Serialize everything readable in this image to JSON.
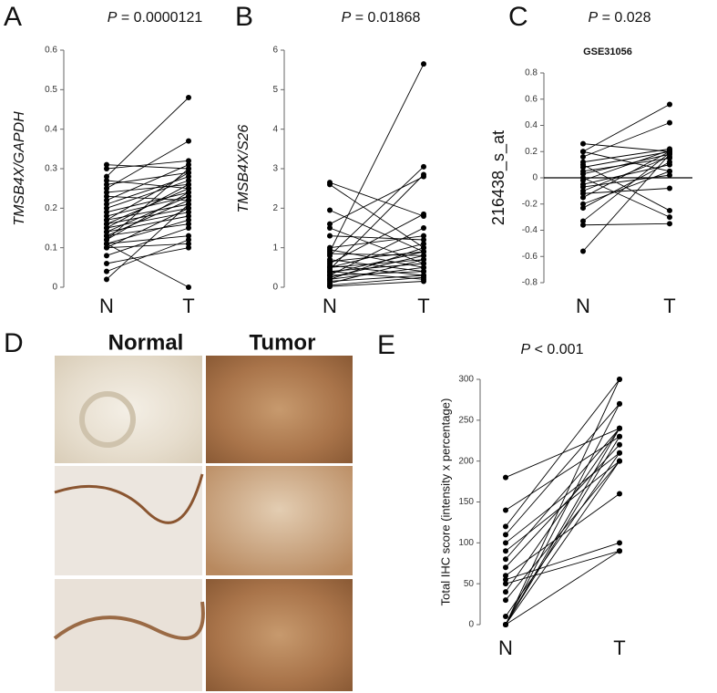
{
  "chart_data": [
    {
      "type": "paired",
      "panel": "A",
      "pvalue_symbol": "P",
      "pvalue_text": "= 0.0000121",
      "ylabel": "TMSB4X/GAPDH",
      "ylabel_italic": true,
      "color": "#000000",
      "categories": [
        "N",
        "T"
      ],
      "ylim": [
        0,
        0.6
      ],
      "yticks": [
        0,
        0.1,
        0.2,
        0.3,
        0.4,
        0.5,
        0.6
      ],
      "zero_line": false,
      "series": [
        {
          "values": [
            0.31,
            0.3
          ]
        },
        {
          "values": [
            0.3,
            0.32
          ]
        },
        {
          "values": [
            0.28,
            0.48
          ]
        },
        {
          "values": [
            0.27,
            0.25
          ]
        },
        {
          "values": [
            0.26,
            0.29
          ]
        },
        {
          "values": [
            0.25,
            0.37
          ]
        },
        {
          "values": [
            0.24,
            0.26
          ]
        },
        {
          "values": [
            0.23,
            0.22
          ]
        },
        {
          "values": [
            0.22,
            0.31
          ]
        },
        {
          "values": [
            0.21,
            0.28
          ]
        },
        {
          "values": [
            0.2,
            0.27
          ]
        },
        {
          "values": [
            0.19,
            0.24
          ]
        },
        {
          "values": [
            0.18,
            0.23
          ]
        },
        {
          "values": [
            0.17,
            0.29
          ]
        },
        {
          "values": [
            0.17,
            0.21
          ]
        },
        {
          "values": [
            0.16,
            0.25
          ]
        },
        {
          "values": [
            0.16,
            0.2
          ]
        },
        {
          "values": [
            0.15,
            0.19
          ]
        },
        {
          "values": [
            0.15,
            0.26
          ]
        },
        {
          "values": [
            0.14,
            0.23
          ]
        },
        {
          "values": [
            0.14,
            0.18
          ]
        },
        {
          "values": [
            0.13,
            0.22
          ]
        },
        {
          "values": [
            0.13,
            0.16
          ]
        },
        {
          "values": [
            0.12,
            0.24
          ]
        },
        {
          "values": [
            0.12,
            0.3
          ]
        },
        {
          "values": [
            0.11,
            0.13
          ]
        },
        {
          "values": [
            0.11,
            0.17
          ]
        },
        {
          "values": [
            0.11,
            0
          ]
        },
        {
          "values": [
            0.1,
            0.11
          ]
        },
        {
          "values": [
            0.1,
            0.2
          ]
        },
        {
          "values": [
            0.08,
            0.15
          ]
        },
        {
          "values": [
            0.06,
            0.1
          ]
        },
        {
          "values": [
            0.04,
            0.12
          ]
        },
        {
          "values": [
            0.02,
            0.21
          ]
        }
      ]
    },
    {
      "type": "paired",
      "panel": "B",
      "pvalue_symbol": "P",
      "pvalue_text": "= 0.01868",
      "ylabel": "TMSB4X/S26",
      "ylabel_italic": true,
      "color": "#000000",
      "categories": [
        "N",
        "T"
      ],
      "ylim": [
        0,
        6
      ],
      "yticks": [
        0,
        1,
        2,
        3,
        4,
        5,
        6
      ],
      "zero_line": false,
      "series": [
        {
          "values": [
            2.65,
            1.8
          ]
        },
        {
          "values": [
            2.6,
            1.0
          ]
        },
        {
          "values": [
            1.95,
            0.9
          ]
        },
        {
          "values": [
            1.6,
            2.8
          ]
        },
        {
          "values": [
            1.5,
            0.6
          ]
        },
        {
          "values": [
            1.3,
            1.2
          ]
        },
        {
          "values": [
            1.0,
            1.3
          ]
        },
        {
          "values": [
            0.95,
            0.5
          ]
        },
        {
          "values": [
            0.9,
            5.65
          ]
        },
        {
          "values": [
            0.85,
            0.8
          ]
        },
        {
          "values": [
            0.8,
            3.05
          ]
        },
        {
          "values": [
            0.7,
            0.4
          ]
        },
        {
          "values": [
            0.65,
            0.9
          ]
        },
        {
          "values": [
            0.6,
            1.85
          ]
        },
        {
          "values": [
            0.55,
            0.3
          ]
        },
        {
          "values": [
            0.5,
            0.7
          ]
        },
        {
          "values": [
            0.5,
            1.1
          ]
        },
        {
          "values": [
            0.45,
            2.85
          ]
        },
        {
          "values": [
            0.4,
            0.6
          ]
        },
        {
          "values": [
            0.4,
            0.2
          ]
        },
        {
          "values": [
            0.35,
            0.9
          ]
        },
        {
          "values": [
            0.3,
            1.5
          ]
        },
        {
          "values": [
            0.3,
            0.4
          ]
        },
        {
          "values": [
            0.25,
            0.8
          ]
        },
        {
          "values": [
            0.2,
            0.5
          ]
        },
        {
          "values": [
            0.2,
            1.0
          ]
        },
        {
          "values": [
            0.15,
            0.3
          ]
        },
        {
          "values": [
            0.1,
            0.7
          ]
        },
        {
          "values": [
            0.05,
            0.25
          ]
        },
        {
          "values": [
            0.02,
            0.15
          ]
        }
      ]
    },
    {
      "type": "paired",
      "panel": "C",
      "pvalue_symbol": "P",
      "pvalue_text": "= 0.028",
      "title": "GSE31056",
      "ylabel": "216438_s_at",
      "ylabel_italic": false,
      "color": "#000000",
      "categories": [
        "N",
        "T"
      ],
      "ylim": [
        -0.8,
        0.8
      ],
      "yticks": [
        -0.8,
        -0.6,
        -0.4,
        -0.2,
        0,
        0.2,
        0.4,
        0.6,
        0.8
      ],
      "zero_line": true,
      "series": [
        {
          "values": [
            0.26,
            0.2
          ]
        },
        {
          "values": [
            0.2,
            0.56
          ]
        },
        {
          "values": [
            0.2,
            0.05
          ]
        },
        {
          "values": [
            0.16,
            0.42
          ]
        },
        {
          "values": [
            0.12,
            0.22
          ]
        },
        {
          "values": [
            0.1,
            -0.25
          ]
        },
        {
          "values": [
            0.08,
            0.2
          ]
        },
        {
          "values": [
            0.05,
            0.15
          ]
        },
        {
          "values": [
            0.03,
            0.18
          ]
        },
        {
          "values": [
            0,
            -0.3
          ]
        },
        {
          "values": [
            -0.02,
            0.21
          ]
        },
        {
          "values": [
            -0.05,
            0.1
          ]
        },
        {
          "values": [
            -0.07,
            0.02
          ]
        },
        {
          "values": [
            -0.1,
            0.16
          ]
        },
        {
          "values": [
            -0.12,
            -0.08
          ]
        },
        {
          "values": [
            -0.15,
            0.2
          ]
        },
        {
          "values": [
            -0.2,
            0.05
          ]
        },
        {
          "values": [
            -0.23,
            0.12
          ]
        },
        {
          "values": [
            -0.33,
            0.19
          ]
        },
        {
          "values": [
            -0.36,
            -0.35
          ]
        },
        {
          "values": [
            -0.56,
            0.18
          ]
        }
      ]
    },
    {
      "type": "paired",
      "panel": "E",
      "pvalue_symbol": "P",
      "pvalue_text": "< 0.001",
      "ylabel": "Total IHC score (intensity x percentage)",
      "ylabel_italic": false,
      "color": "#000000",
      "categories": [
        "N",
        "T"
      ],
      "ylim": [
        0,
        300
      ],
      "yticks": [
        0,
        50,
        100,
        150,
        200,
        250,
        300
      ],
      "zero_line": false,
      "series": [
        {
          "values": [
            180,
            240
          ]
        },
        {
          "values": [
            140,
            230
          ]
        },
        {
          "values": [
            120,
            300
          ]
        },
        {
          "values": [
            110,
            270
          ]
        },
        {
          "values": [
            100,
            210
          ]
        },
        {
          "values": [
            90,
            200
          ]
        },
        {
          "values": [
            80,
            240
          ]
        },
        {
          "values": [
            70,
            220
          ]
        },
        {
          "values": [
            60,
            160
          ]
        },
        {
          "values": [
            55,
            100
          ]
        },
        {
          "values": [
            50,
            90
          ]
        },
        {
          "values": [
            40,
            240
          ]
        },
        {
          "values": [
            30,
            200
          ]
        },
        {
          "values": [
            10,
            210
          ]
        },
        {
          "values": [
            0,
            240
          ]
        },
        {
          "values": [
            0,
            300
          ]
        },
        {
          "values": [
            0,
            270
          ]
        },
        {
          "values": [
            0,
            200
          ]
        },
        {
          "values": [
            0,
            90
          ]
        },
        {
          "values": [
            0,
            230
          ]
        }
      ]
    }
  ],
  "image_panel": {
    "panel": "D",
    "columns": [
      "Normal",
      "Tumor"
    ]
  }
}
